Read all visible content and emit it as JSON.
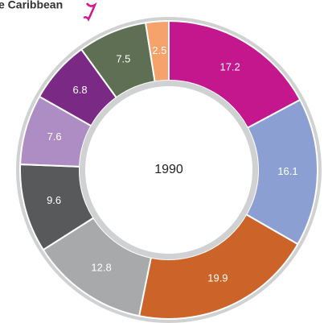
{
  "chart_data": {
    "type": "donut",
    "title": "e Caribbean",
    "center_label": "1990",
    "values": [
      17.2,
      16.1,
      19.9,
      12.8,
      9.6,
      7.6,
      6.8,
      7.5,
      2.5
    ],
    "colors": [
      "#c4168d",
      "#8c9fd2",
      "#cc6328",
      "#a8a9ab",
      "#58595b",
      "#ad8dc4",
      "#7a2a84",
      "#5f6f54",
      "#f7a16b"
    ]
  }
}
